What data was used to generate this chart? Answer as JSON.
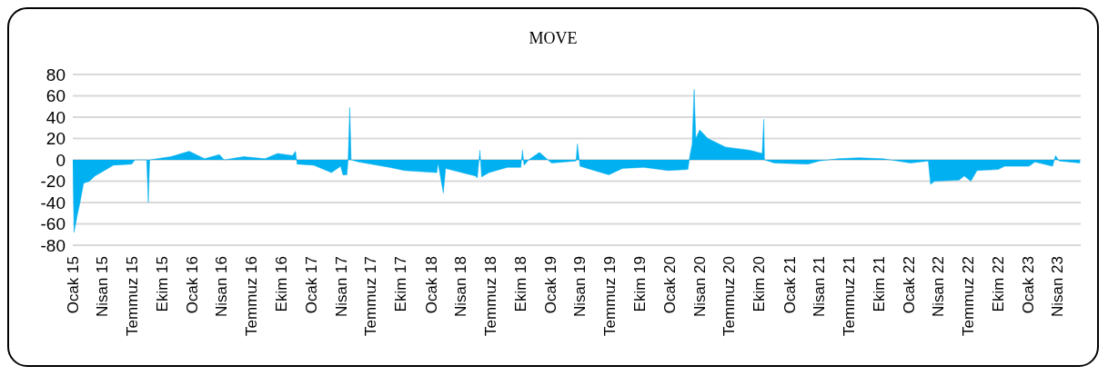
{
  "chart_data": {
    "type": "area",
    "title": "MOVE",
    "x": [
      "2015-01-01",
      "2015-01-05",
      "2015-01-14",
      "2015-01-23",
      "2015-02-03",
      "2015-02-21",
      "2015-03-10",
      "2015-03-28",
      "2015-05-05",
      "2015-06-30",
      "2015-07-10",
      "2015-08-15",
      "2015-08-20",
      "2015-08-24",
      "2015-10-28",
      "2015-12-23",
      "2016-02-08",
      "2016-03-24",
      "2016-04-08",
      "2016-06-07",
      "2016-08-11",
      "2016-09-18",
      "2016-11-03",
      "2016-11-12",
      "2016-11-17",
      "2017-01-07",
      "2017-03-02",
      "2017-03-30",
      "2017-04-06",
      "2017-04-18",
      "2017-04-22",
      "2017-04-27",
      "2017-05-01",
      "2017-05-24",
      "2017-08-26",
      "2017-10-11",
      "2018-01-18",
      "2018-01-22",
      "2018-02-07",
      "2018-02-14",
      "2018-04-05",
      "2018-05-16",
      "2018-05-22",
      "2018-05-30",
      "2018-06-04",
      "2018-06-27",
      "2018-08-22",
      "2018-10-02",
      "2018-10-07",
      "2018-10-12",
      "2018-10-26",
      "2018-11-28",
      "2019-01-04",
      "2019-03-20",
      "2019-03-24",
      "2019-04-01",
      "2019-05-26",
      "2019-06-28",
      "2019-08-09",
      "2019-10-13",
      "2019-12-26",
      "2020-02-25",
      "2020-03-02",
      "2020-03-09",
      "2020-03-15",
      "2020-03-20",
      "2020-04-01",
      "2020-04-26",
      "2020-06-19",
      "2020-09-02",
      "2020-10-09",
      "2020-10-14",
      "2020-10-16",
      "2020-11-15",
      "2021-02-26",
      "2021-04-02",
      "2021-05-28",
      "2021-08-01",
      "2021-10-14",
      "2022-01-06",
      "2022-03-01",
      "2022-03-08",
      "2022-03-20",
      "2022-06-03",
      "2022-06-19",
      "2022-07-09",
      "2022-07-28",
      "2022-10-01",
      "2022-10-20",
      "2023-01-03",
      "2023-01-21",
      "2023-03-16",
      "2023-03-25",
      "2023-04-05",
      "2023-06-08"
    ],
    "series": [
      {
        "color": "#00b0f0",
        "values": [
          0,
          -68,
          -53,
          -40,
          -22,
          -20,
          -15,
          -12,
          -5,
          -4,
          0,
          0,
          -40,
          0,
          3,
          8,
          1,
          5,
          0,
          3,
          1,
          6,
          4,
          8,
          -4,
          -5,
          -12,
          -6,
          -14,
          -14,
          0,
          49,
          0,
          -2,
          -7,
          -10,
          -12,
          -3,
          -31,
          -8,
          -12,
          -15,
          -17,
          9,
          -16,
          -12,
          -7,
          -7,
          9,
          -5,
          0,
          7,
          -3,
          -1,
          15,
          -6,
          -11,
          -14,
          -8,
          -7,
          -10,
          -9,
          4,
          15,
          66,
          20,
          28,
          20,
          12,
          9,
          6,
          38,
          0,
          -3,
          -4,
          -1,
          1,
          2,
          1,
          -3,
          -1,
          -23,
          -20,
          -19,
          -15,
          -20,
          -10,
          -9,
          -6,
          -6,
          -2,
          -6,
          4,
          -1,
          -3
        ]
      }
    ],
    "xlim": [
      "2015-01-01",
      "2023-06-10"
    ],
    "xticks": [
      {
        "value": "2015-01",
        "label": "Ocak 15"
      },
      {
        "value": "2015-04",
        "label": "Nisan 15"
      },
      {
        "value": "2015-07",
        "label": "Temmuz 15"
      },
      {
        "value": "2015-10",
        "label": "Ekim 15"
      },
      {
        "value": "2016-01",
        "label": "Ocak 16"
      },
      {
        "value": "2016-04",
        "label": "Nisan 16"
      },
      {
        "value": "2016-07",
        "label": "Temmuz 16"
      },
      {
        "value": "2016-10",
        "label": "Ekim 16"
      },
      {
        "value": "2017-01",
        "label": "Ocak 17"
      },
      {
        "value": "2017-04",
        "label": "Nisan 17"
      },
      {
        "value": "2017-07",
        "label": "Temmuz 17"
      },
      {
        "value": "2017-10",
        "label": "Ekim 17"
      },
      {
        "value": "2018-01",
        "label": "Ocak 18"
      },
      {
        "value": "2018-04",
        "label": "Nisan 18"
      },
      {
        "value": "2018-07",
        "label": "Temmuz 18"
      },
      {
        "value": "2018-10",
        "label": "Ekim 18"
      },
      {
        "value": "2019-01",
        "label": "Ocak 19"
      },
      {
        "value": "2019-04",
        "label": "Nisan 19"
      },
      {
        "value": "2019-07",
        "label": "Temmuz 19"
      },
      {
        "value": "2019-10",
        "label": "Ekim 19"
      },
      {
        "value": "2020-01",
        "label": "Ocak 20"
      },
      {
        "value": "2020-04",
        "label": "Nisan 20"
      },
      {
        "value": "2020-07",
        "label": "Temmuz 20"
      },
      {
        "value": "2020-10",
        "label": "Ekim 20"
      },
      {
        "value": "2021-01",
        "label": "Ocak 21"
      },
      {
        "value": "2021-04",
        "label": "Nisan 21"
      },
      {
        "value": "2021-07",
        "label": "Temmuz 21"
      },
      {
        "value": "2021-10",
        "label": "Ekim 21"
      },
      {
        "value": "2022-01",
        "label": "Ocak 22"
      },
      {
        "value": "2022-04",
        "label": "Nisan 22"
      },
      {
        "value": "2022-07",
        "label": "Temmuz 22"
      },
      {
        "value": "2022-10",
        "label": "Ekim 22"
      },
      {
        "value": "2023-01",
        "label": "Ocak 23"
      },
      {
        "value": "2023-04",
        "label": "Nisan 23"
      }
    ],
    "ylim": [
      -80,
      80
    ],
    "yticks": [
      -80,
      -60,
      -40,
      -20,
      0,
      20,
      40,
      60,
      80
    ],
    "grid": "y",
    "legend": false
  }
}
